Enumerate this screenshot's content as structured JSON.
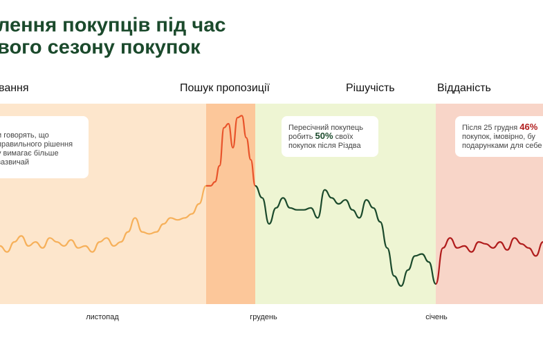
{
  "chart_data": {
    "type": "line",
    "title_lines": [
      "лення покупців під час",
      "вого сезону покупок"
    ],
    "ylim": [
      0,
      100
    ],
    "phases": [
      {
        "label": "вання",
        "color": "#f6b05a",
        "band_color": "#fde6cc",
        "values": [
          29,
          26,
          31,
          34,
          29,
          31,
          28,
          33,
          31,
          29,
          32,
          28,
          29,
          26,
          31,
          33,
          29,
          31,
          36,
          43,
          36,
          35,
          36,
          40,
          43,
          42,
          43,
          45,
          50,
          59
        ]
      },
      {
        "label": "Пошук пропозиції",
        "color": "#e8532a",
        "band_color": "#fcc79a",
        "values": [
          59,
          59,
          61,
          69,
          88,
          90,
          78,
          93,
          94,
          83,
          72,
          59
        ]
      },
      {
        "label": "Рішучість",
        "color": "#1b4a2c",
        "band_color": "#eef5d3",
        "values": [
          59,
          53,
          40,
          48,
          53,
          48,
          47,
          47,
          48,
          43,
          57,
          53,
          50,
          52,
          47,
          43,
          52,
          48,
          41,
          28,
          14,
          9,
          17,
          24,
          25,
          21,
          10
        ]
      },
      {
        "label": "Відданість",
        "color": "#b01c1c",
        "band_color": "#f8d5c8",
        "values": [
          10,
          28,
          33,
          28,
          29,
          26,
          31,
          30,
          28,
          31,
          27,
          33,
          30,
          28,
          24,
          31
        ]
      }
    ],
    "annotations": [
      {
        "lines": [
          [
            "и говорять, що"
          ],
          [
            "правильного рішення"
          ],
          [
            "у вимагає більше"
          ],
          [
            "зазвичай"
          ]
        ]
      },
      {
        "lines": [
          [
            "Пересічний покупець"
          ],
          [
            "робить ",
            {
              "text": "50%"
            },
            " своїх"
          ],
          [
            "покупок після Різдва"
          ]
        ]
      },
      {
        "lines": [
          [
            "Після 25 грудня ",
            {
              "text": "46%"
            }
          ],
          [
            "покупок, імовірно, бу"
          ],
          [
            "подарунками для себе"
          ]
        ]
      }
    ],
    "categories": [
      "листопад",
      "грудень",
      "січень"
    ]
  }
}
